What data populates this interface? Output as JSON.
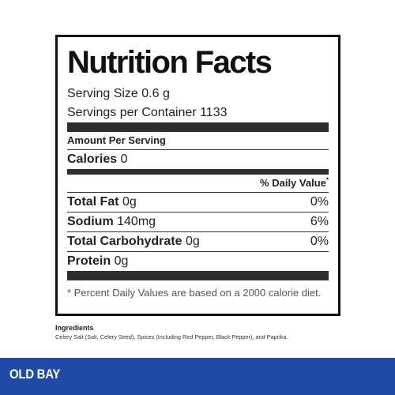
{
  "label": {
    "title": "Nutrition Facts",
    "serving_size": "Serving Size 0.6 g",
    "servings_per_container": "Servings per Container 1133",
    "amount_per_serving": "Amount Per Serving",
    "calories_label": "Calories",
    "calories_value": "0",
    "daily_value_header": "% Daily Value",
    "daily_value_mark": "*",
    "nutrients": [
      {
        "name": "Total Fat",
        "amount": "0g",
        "dv": "0%"
      },
      {
        "name": "Sodium",
        "amount": "140mg",
        "dv": "6%"
      },
      {
        "name": "Total Carbohydrate",
        "amount": "0g",
        "dv": "0%"
      },
      {
        "name": "Protein",
        "amount": "0g",
        "dv": ""
      }
    ],
    "footnote": "* Percent Daily Values are based on a 2000 calorie diet."
  },
  "ingredients": {
    "heading": "Ingredients",
    "text": "Celery Salt (Salt, Celery Seed), Spices (Including Red Pepper, Black Pepper), and Paprika."
  },
  "brand": {
    "logo_text": "OLD BAY",
    "bar_color": "#1f4aa6"
  }
}
